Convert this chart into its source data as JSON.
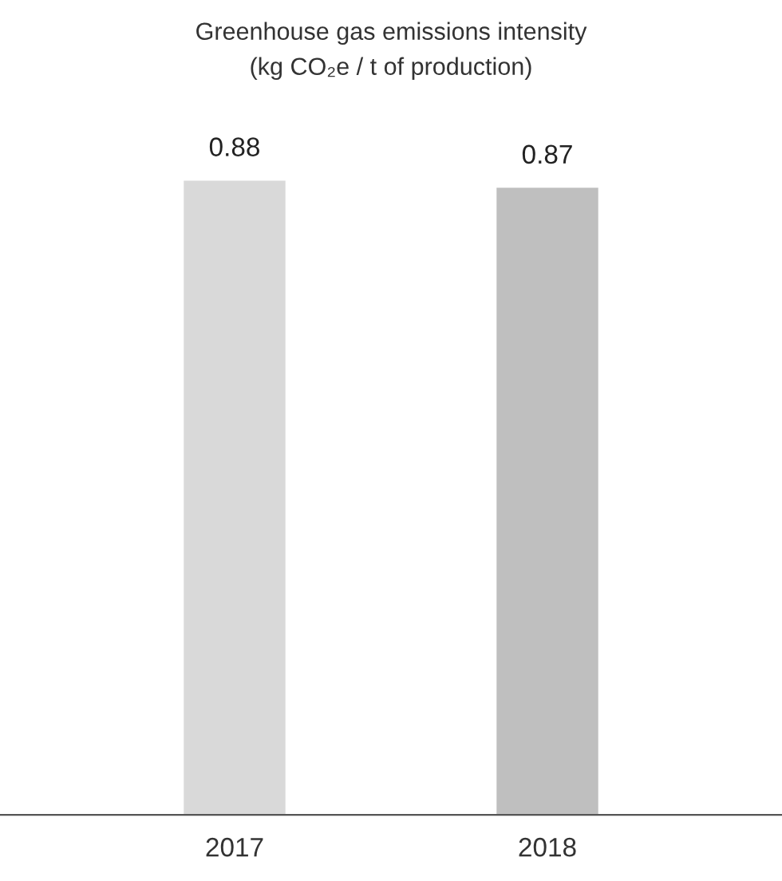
{
  "chart_data": {
    "type": "bar",
    "title": "Greenhouse gas emissions intensity\n(kg CO₂e / t of production)",
    "categories": [
      "2017",
      "2018"
    ],
    "values": [
      0.88,
      0.87
    ],
    "colors": [
      "#d9d9d9",
      "#bfbfbf"
    ],
    "data_labels": true,
    "grid": false,
    "legend": false,
    "tick_labels": "x"
  }
}
